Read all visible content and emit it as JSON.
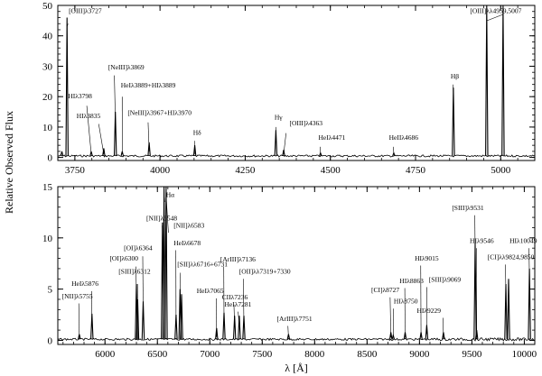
{
  "chart_data": [
    {
      "type": "line",
      "panel": "top",
      "xlim": [
        3700,
        5100
      ],
      "ylim": [
        -1,
        50
      ],
      "x_ticks": [
        3750,
        4000,
        4250,
        4500,
        4750,
        5000
      ],
      "y_ticks": [
        0,
        10,
        20,
        30,
        40,
        50
      ],
      "baseline": 0.5,
      "grid": false,
      "lines": [
        {
          "x": 3727,
          "y": 46,
          "label": "[OIII]λ3727",
          "tx": 3732,
          "ty": 47.5,
          "lx": 3730,
          "ly": 44
        },
        {
          "x": 3798,
          "y": 2,
          "label": "HIλ3798",
          "tx": 3730,
          "ty": 19.5,
          "lx": 3785,
          "ly": 17
        },
        {
          "x": 3835,
          "y": 3,
          "label": "HIλ3835",
          "tx": 3755,
          "ty": 13,
          "lx": 3820,
          "ly": 11
        },
        {
          "x": 3869,
          "y": 15,
          "label": "[NeIII]λ3869",
          "tx": 3848,
          "ty": 29,
          "lx": 3866,
          "ly": 27
        },
        {
          "x": 3889,
          "y": 2,
          "label": "HeIλ3889+HIλ3889",
          "tx": 3885,
          "ty": 23,
          "lx": 3889,
          "ly": 20
        },
        {
          "x": 3968,
          "y": 5,
          "label": "[NeIII]λ3967+HIλ3970",
          "tx": 3905,
          "ty": 14,
          "lx": 3965,
          "ly": 11.5
        },
        {
          "x": 4102,
          "y": 4,
          "label": "Hδ",
          "tx": 4097,
          "ty": 7.5,
          "lx": 4101,
          "ly": 5.5
        },
        {
          "x": 4340,
          "y": 9,
          "label": "Hγ",
          "tx": 4336,
          "ty": 12.5,
          "lx": 4340,
          "ly": 10
        },
        {
          "x": 4363,
          "y": 2.5,
          "label": "[OIII]λ4363",
          "tx": 4380,
          "ty": 10.5,
          "lx": 4370,
          "ly": 8
        },
        {
          "x": 4471,
          "y": 1.5,
          "label": "HeIλ4471",
          "tx": 4465,
          "ty": 5.8,
          "lx": 4470,
          "ly": 3.5
        },
        {
          "x": 4686,
          "y": 1.5,
          "label": "HeIIλ4686",
          "tx": 4672,
          "ty": 5.8,
          "lx": 4685,
          "ly": 3.5
        },
        {
          "x": 4861,
          "y": 23,
          "label": "Hβ",
          "tx": 4853,
          "ty": 26,
          "lx": 4860,
          "ly": 24
        },
        {
          "x": 4959,
          "y": 50,
          "label": "",
          "tx": 0,
          "ty": 0,
          "lx": 0,
          "ly": 0
        },
        {
          "x": 5007,
          "y": 50,
          "label": "[OIII]λλ4959,5007",
          "tx": 4910,
          "ty": 47.5,
          "lx": 4960,
          "ly": 45
        },
        {
          "x": 3712,
          "y": 2,
          "label": "",
          "tx": 0,
          "ty": 0,
          "lx": 0,
          "ly": 0
        }
      ]
    },
    {
      "type": "line",
      "panel": "bottom",
      "xlim": [
        5550,
        10100
      ],
      "ylim": [
        -0.4,
        15
      ],
      "x_ticks": [
        6000,
        6500,
        7000,
        7500,
        8000,
        8500,
        9000,
        9500,
        10000
      ],
      "y_ticks": [
        0,
        5,
        10,
        15
      ],
      "baseline": 0.1,
      "grid": false,
      "lines": [
        {
          "x": 5755,
          "y": 0.6,
          "label": "[NII]λ5755",
          "tx": 5590,
          "ty": 4.1,
          "lx": 5750,
          "ly": 3.6
        },
        {
          "x": 5876,
          "y": 2.6,
          "label": "HeIλ5876",
          "tx": 5680,
          "ty": 5.3,
          "lx": 5872,
          "ly": 4.8
        },
        {
          "x": 6300,
          "y": 5.5,
          "label": "[OI]λ6300",
          "tx": 6045,
          "ty": 7.8,
          "lx": 6295,
          "ly": 7.2
        },
        {
          "x": 6312,
          "y": 4.0,
          "label": "[SIII]λ6312",
          "tx": 6130,
          "ty": 6.5,
          "lx": 6310,
          "ly": 5.5
        },
        {
          "x": 6364,
          "y": 3.8,
          "label": "[OI]λ6364",
          "tx": 6180,
          "ty": 8.8,
          "lx": 6360,
          "ly": 8.2
        },
        {
          "x": 6548,
          "y": 11.5,
          "label": "[NII]λ6548",
          "tx": 6395,
          "ty": 11.7,
          "lx": 6545,
          "ly": 11.2
        },
        {
          "x": 6563,
          "y": 15,
          "label": "Hα",
          "tx": 6582,
          "ty": 14.0,
          "lx": 6570,
          "ly": 13.5
        },
        {
          "x": 6583,
          "y": 15,
          "label": "[NII]λ6583",
          "tx": 6655,
          "ty": 11.0,
          "lx": 6605,
          "ly": 10.5
        },
        {
          "x": 6678,
          "y": 2.5,
          "label": "HeIλ6678",
          "tx": 6655,
          "ty": 9.3,
          "lx": 6676,
          "ly": 8.8
        },
        {
          "x": 6716,
          "y": 5.0,
          "label": "[SII]λλ6716+6731",
          "tx": 6690,
          "ty": 7.2,
          "lx": 6720,
          "ly": 6.6
        },
        {
          "x": 6731,
          "y": 4.5,
          "label": "",
          "tx": 0,
          "ty": 0,
          "lx": 0,
          "ly": 0
        },
        {
          "x": 7065,
          "y": 1.2,
          "label": "HeIλ7065",
          "tx": 6875,
          "ty": 4.6,
          "lx": 7062,
          "ly": 4.1
        },
        {
          "x": 7136,
          "y": 2.7,
          "label": "[ArIII]λ7136",
          "tx": 7100,
          "ty": 7.7,
          "lx": 7133,
          "ly": 7.2
        },
        {
          "x": 7236,
          "y": 2.4,
          "label": "CIIλ7236",
          "tx": 7115,
          "ty": 4.0,
          "lx": 7230,
          "ly": 3.5
        },
        {
          "x": 7281,
          "y": 2.4,
          "label": "HeIλ7281",
          "tx": 7140,
          "ty": 3.3,
          "lx": 7270,
          "ly": 2.8
        },
        {
          "x": 7325,
          "y": 2.4,
          "label": "[OII]λλ7319+7330",
          "tx": 7280,
          "ty": 6.5,
          "lx": 7320,
          "ly": 6.0
        },
        {
          "x": 7751,
          "y": 0.6,
          "label": "[ArIII]λ7751",
          "tx": 7640,
          "ty": 1.9,
          "lx": 7745,
          "ly": 1.4
        },
        {
          "x": 8727,
          "y": 0.8,
          "label": "[CI]λ8727",
          "tx": 8540,
          "ty": 4.7,
          "lx": 8720,
          "ly": 4.2
        },
        {
          "x": 8750,
          "y": 0.5,
          "label": "HIλ8750",
          "tx": 8755,
          "ty": 3.6,
          "lx": 8752,
          "ly": 3.1
        },
        {
          "x": 8863,
          "y": 0.8,
          "label": "HIλ8863",
          "tx": 8810,
          "ty": 5.6,
          "lx": 8860,
          "ly": 5.1
        },
        {
          "x": 9015,
          "y": 0.8,
          "label": "HIλ9015",
          "tx": 8955,
          "ty": 7.8,
          "lx": 9012,
          "ly": 7.3
        },
        {
          "x": 9069,
          "y": 1.5,
          "label": "[SIII]λ9069",
          "tx": 9090,
          "ty": 5.7,
          "lx": 9070,
          "ly": 5.2
        },
        {
          "x": 9229,
          "y": 0.8,
          "label": "HIλ9229",
          "tx": 8975,
          "ty": 2.7,
          "lx": 9225,
          "ly": 2.2
        },
        {
          "x": 9531,
          "y": 9.5,
          "label": "[SIII]λ9531",
          "tx": 9310,
          "ty": 12.7,
          "lx": 9528,
          "ly": 12.2
        },
        {
          "x": 9546,
          "y": 1.0,
          "label": "HIλ9546",
          "tx": 9480,
          "ty": 9.5,
          "lx": 9545,
          "ly": 9.0
        },
        {
          "x": 9824,
          "y": 5.5,
          "label": "[CI]λλ9824,9850",
          "tx": 9650,
          "ty": 7.9,
          "lx": 9820,
          "ly": 7.4
        },
        {
          "x": 9850,
          "y": 6.0,
          "label": "",
          "tx": 0,
          "ty": 0,
          "lx": 0,
          "ly": 0
        },
        {
          "x": 10049,
          "y": 7.0,
          "label": "HIλ10049",
          "tx": 9860,
          "ty": 9.5,
          "lx": 10045,
          "ly": 9.0
        }
      ]
    }
  ],
  "axes": {
    "ylabel": "Relative Observed Flux",
    "xlabel": "λ [Å]"
  }
}
